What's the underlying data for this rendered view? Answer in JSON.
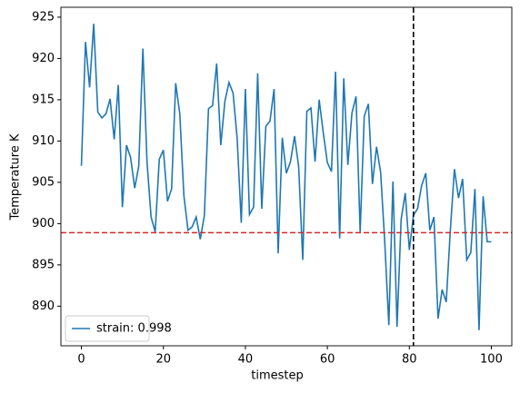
{
  "chart_data": {
    "type": "line",
    "xlabel": "timestep",
    "ylabel": "Temperature K",
    "x": [
      0,
      1,
      2,
      3,
      4,
      5,
      6,
      7,
      8,
      9,
      10,
      11,
      12,
      13,
      14,
      15,
      16,
      17,
      18,
      19,
      20,
      21,
      22,
      23,
      24,
      25,
      26,
      27,
      28,
      29,
      30,
      31,
      32,
      33,
      34,
      35,
      36,
      37,
      38,
      39,
      40,
      41,
      42,
      43,
      44,
      45,
      46,
      47,
      48,
      49,
      50,
      51,
      52,
      53,
      54,
      55,
      56,
      57,
      58,
      59,
      60,
      61,
      62,
      63,
      64,
      65,
      66,
      67,
      68,
      69,
      70,
      71,
      72,
      73,
      74,
      75,
      76,
      77,
      78,
      79,
      80,
      81,
      82,
      83,
      84,
      85,
      86,
      87,
      88,
      89,
      90,
      91,
      92,
      93,
      94,
      95,
      96,
      97,
      98,
      99,
      100
    ],
    "series": [
      {
        "name": "strain: 0.998",
        "color": "#1f77b4",
        "values": [
          907,
          922,
          916.5,
          924.2,
          913.5,
          912.8,
          913.3,
          915.1,
          910.2,
          916.8,
          902,
          909.5,
          908,
          904.3,
          907,
          921.2,
          907.5,
          900.8,
          899,
          907.8,
          908.9,
          902.7,
          904.2,
          917,
          913.3,
          903.4,
          899.2,
          899.6,
          900.8,
          898.1,
          901,
          913.9,
          914.3,
          919.4,
          909.5,
          914.8,
          917.1,
          915.8,
          910.3,
          900.1,
          916.3,
          901.1,
          902,
          918.2,
          901.8,
          911.8,
          912.4,
          916.3,
          896.4,
          910.4,
          906.1,
          907.5,
          910.6,
          906.9,
          895.6,
          913.6,
          914,
          907.5,
          915,
          911,
          907.4,
          906.3,
          918.4,
          898.2,
          917.6,
          907.1,
          913.4,
          915.4,
          899,
          913,
          914.5,
          904.8,
          909.3,
          906.2,
          897.8,
          887.7,
          905.1,
          887.5,
          900.5,
          903.7,
          896.8,
          901,
          901.8,
          904.6,
          906.1,
          899.2,
          900.8,
          888.5,
          892,
          890.5,
          899.2,
          906.6,
          903.1,
          905.4,
          895.6,
          896.5,
          904.2,
          887.1,
          903.3,
          897.8,
          897.8
        ]
      }
    ],
    "xlim": [
      -5,
      105
    ],
    "ylim": [
      885.2,
      926.2
    ],
    "xticks": [
      0,
      20,
      40,
      60,
      80,
      100
    ],
    "yticks": [
      890,
      895,
      900,
      905,
      910,
      915,
      920,
      925
    ],
    "hline": {
      "y": 898.9,
      "color": "#d62728"
    },
    "vline": {
      "x": 81,
      "color": "#000000"
    },
    "legend": "lower left",
    "grid": false
  }
}
